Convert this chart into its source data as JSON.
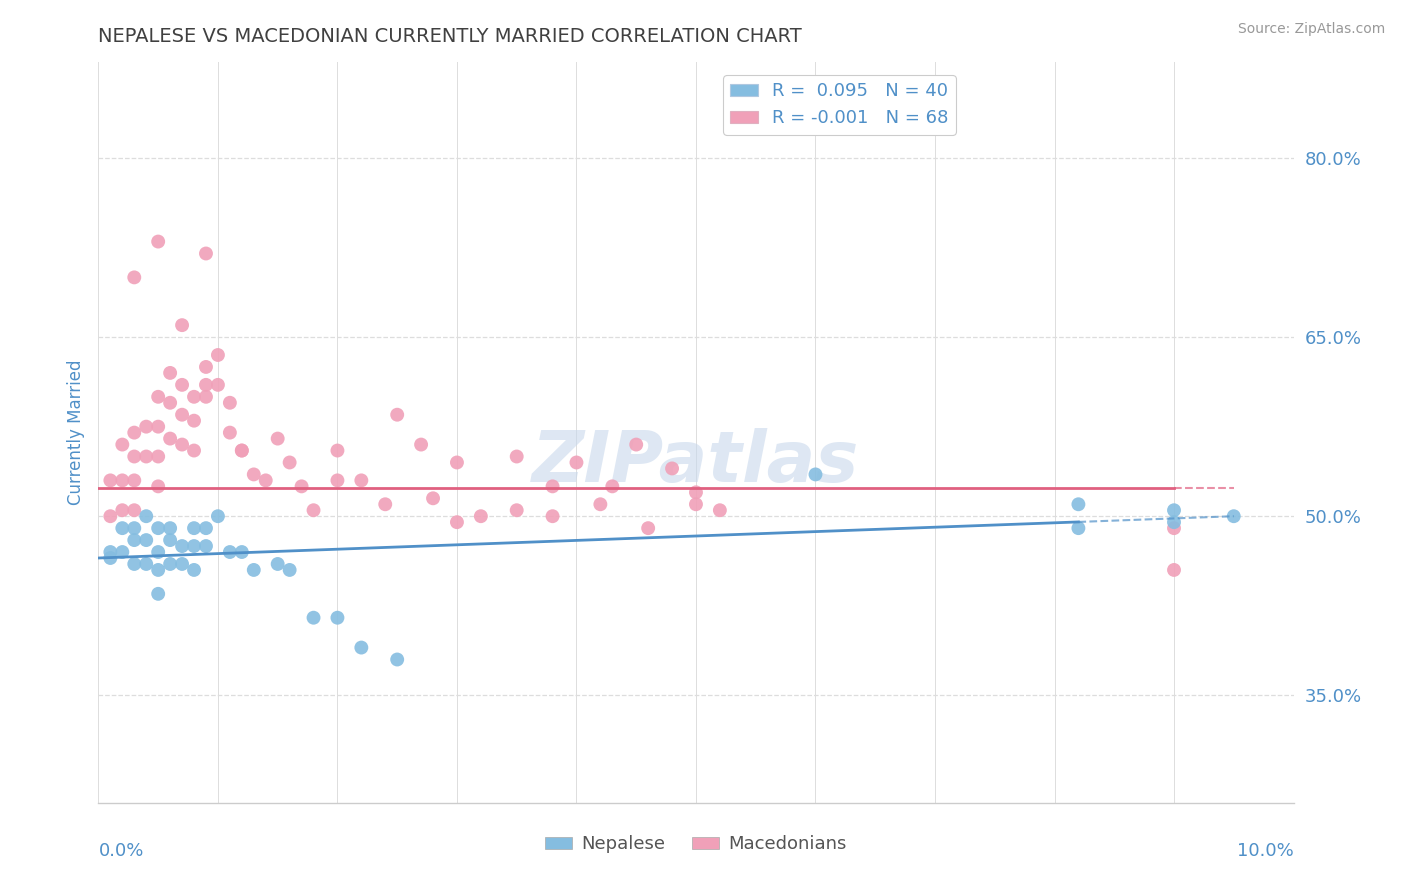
{
  "title": "NEPALESE VS MACEDONIAN CURRENTLY MARRIED CORRELATION CHART",
  "source_text": "Source: ZipAtlas.com",
  "ylabel": "Currently Married",
  "xlim": [
    0.0,
    0.1
  ],
  "ylim": [
    0.26,
    0.88
  ],
  "yticks": [
    0.35,
    0.5,
    0.65,
    0.8
  ],
  "ytick_labels": [
    "35.0%",
    "50.0%",
    "65.0%",
    "80.0%"
  ],
  "nepalese_color": "#85bde0",
  "macedonian_color": "#f0a0b8",
  "trendline_nepalese_color": "#5090c8",
  "trendline_macedonian_color": "#e06080",
  "watermark_color": "#c8d8ec",
  "background_color": "#ffffff",
  "grid_color": "#dddddd",
  "title_color": "#404040",
  "axis_label_color": "#5090c8",
  "tick_label_color": "#5090c8",
  "nepalese_x": [
    0.001,
    0.001,
    0.002,
    0.002,
    0.003,
    0.003,
    0.003,
    0.004,
    0.004,
    0.004,
    0.005,
    0.005,
    0.005,
    0.005,
    0.006,
    0.006,
    0.006,
    0.007,
    0.007,
    0.008,
    0.008,
    0.008,
    0.009,
    0.009,
    0.01,
    0.011,
    0.012,
    0.013,
    0.015,
    0.016,
    0.018,
    0.02,
    0.022,
    0.025,
    0.06,
    0.082,
    0.082,
    0.09,
    0.09,
    0.095
  ],
  "nepalese_y": [
    0.47,
    0.465,
    0.49,
    0.47,
    0.49,
    0.48,
    0.46,
    0.5,
    0.48,
    0.46,
    0.49,
    0.47,
    0.455,
    0.435,
    0.49,
    0.48,
    0.46,
    0.475,
    0.46,
    0.49,
    0.475,
    0.455,
    0.49,
    0.475,
    0.5,
    0.47,
    0.47,
    0.455,
    0.46,
    0.455,
    0.415,
    0.415,
    0.39,
    0.38,
    0.535,
    0.51,
    0.49,
    0.505,
    0.495,
    0.5
  ],
  "macedonian_x": [
    0.001,
    0.001,
    0.002,
    0.002,
    0.002,
    0.003,
    0.003,
    0.003,
    0.003,
    0.004,
    0.004,
    0.005,
    0.005,
    0.005,
    0.005,
    0.006,
    0.006,
    0.006,
    0.007,
    0.007,
    0.007,
    0.008,
    0.008,
    0.008,
    0.009,
    0.009,
    0.01,
    0.01,
    0.011,
    0.011,
    0.012,
    0.013,
    0.014,
    0.015,
    0.016,
    0.017,
    0.018,
    0.02,
    0.02,
    0.022,
    0.024,
    0.025,
    0.027,
    0.028,
    0.03,
    0.032,
    0.035,
    0.038,
    0.04,
    0.043,
    0.045,
    0.048,
    0.05,
    0.052,
    0.03,
    0.035,
    0.038,
    0.042,
    0.046,
    0.05,
    0.003,
    0.005,
    0.007,
    0.009,
    0.009,
    0.012,
    0.09,
    0.09
  ],
  "macedonian_y": [
    0.53,
    0.5,
    0.56,
    0.53,
    0.505,
    0.57,
    0.55,
    0.53,
    0.505,
    0.575,
    0.55,
    0.6,
    0.575,
    0.55,
    0.525,
    0.62,
    0.595,
    0.565,
    0.61,
    0.585,
    0.56,
    0.6,
    0.58,
    0.555,
    0.625,
    0.6,
    0.635,
    0.61,
    0.595,
    0.57,
    0.555,
    0.535,
    0.53,
    0.565,
    0.545,
    0.525,
    0.505,
    0.555,
    0.53,
    0.53,
    0.51,
    0.585,
    0.56,
    0.515,
    0.545,
    0.5,
    0.55,
    0.525,
    0.545,
    0.525,
    0.56,
    0.54,
    0.52,
    0.505,
    0.495,
    0.505,
    0.5,
    0.51,
    0.49,
    0.51,
    0.7,
    0.73,
    0.66,
    0.61,
    0.72,
    0.555,
    0.49,
    0.455
  ],
  "neo_trend_x": [
    0.0,
    0.095
  ],
  "neo_trend_y": [
    0.465,
    0.5
  ],
  "mac_trend_x": [
    0.0,
    0.095
  ],
  "mac_trend_y": [
    0.524,
    0.524
  ],
  "neo_trend_solid_end": 0.082,
  "mac_trend_solid_end": 0.09
}
